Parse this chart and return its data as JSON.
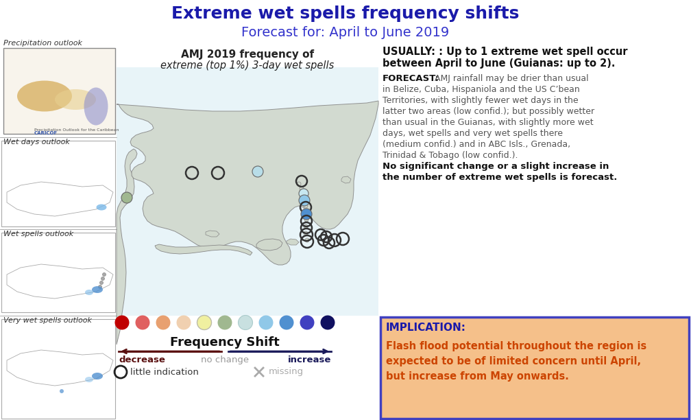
{
  "title": "Extreme wet spells frequency shifts",
  "subtitle": "Forecast for: April to June 2019",
  "title_color": "#1a1aaa",
  "subtitle_color": "#3333cc",
  "bg_color": "#ffffff",
  "left_labels": [
    "Precipitation outlook",
    "Wet days outlook",
    "Wet spells outlook",
    "Very wet spells outlook"
  ],
  "map_title_line1": "AMJ 2019 frequency of",
  "map_title_line2": "extreme (top 1%) 3-day wet spells",
  "legend_colors": [
    "#c00000",
    "#e06060",
    "#e8a070",
    "#f0d0b0",
    "#f0f0a0",
    "#a0b890",
    "#c8e0e0",
    "#90c8e8",
    "#5090d0",
    "#4040c0",
    "#101060"
  ],
  "legend_label": "Frequency Shift",
  "arrow_color_left": "#5a1010",
  "arrow_color_right": "#1a1a5a",
  "decrease_label": "decrease",
  "no_change_label": "no change",
  "increase_label": "increase",
  "little_indication_label": "little indication",
  "missing_label": "missing",
  "usually_line1": "USUALLY: : Up to 1 extreme wet spell occur",
  "usually_line2": "between April to June (Guianas: up to 2).",
  "forecast_label": "FORECAST:",
  "forecast_lines": [
    " AMJ rainfall may be drier than usual",
    "in Belize, Cuba, Hispaniola and the US C’bean",
    "Territories, with slightly fewer wet days in the",
    "latter two areas (low confid.); but possibly wetter",
    "than usual in the Guianas, with slightly more wet",
    "days, wet spells and very wet spells there",
    "(medium confid.) and in ABC Isls., Grenada,",
    "Trinidad & Tobago (low confid.)."
  ],
  "forecast_bold_lines": [
    "No significant change or a slight increase in",
    "the number of extreme wet spells is forecast."
  ],
  "implication_label": "IMPLICATION:",
  "implication_lines": [
    "Flash flood potential throughout the region is",
    "expected to be of limited concern until April,",
    "but increase from May onwards."
  ],
  "implication_bg": "#f5c08a",
  "implication_border": "#4040c0",
  "implication_label_color": "#1a1aaa",
  "implication_text_color": "#cc4400",
  "map_bg": "#ffffff",
  "map_land_color": "#d0d8cc",
  "map_edge_color": "#888888",
  "map_water_color": "#ddeeff"
}
